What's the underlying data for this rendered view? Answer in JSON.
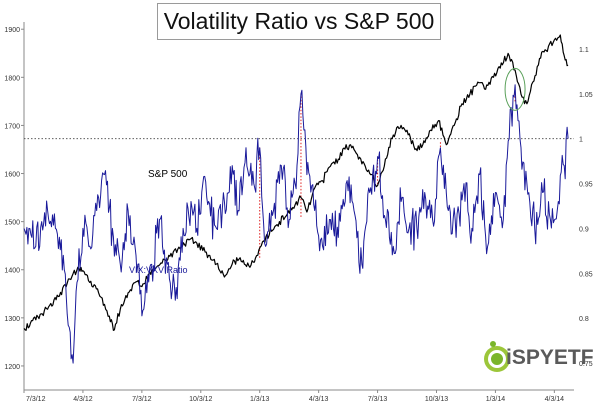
{
  "chart_data": {
    "type": "line",
    "title": "Volatility Ratio vs S&P 500",
    "x_tick_labels": [
      "7/3/12",
      "4/3/12",
      "7/3/12",
      "10/3/12",
      "1/3/13",
      "4/3/13",
      "7/3/13",
      "10/3/13",
      "1/3/14",
      "4/3/14"
    ],
    "x_tick_positions": [
      0,
      3,
      6,
      9,
      12,
      15,
      18,
      21,
      24,
      27
    ],
    "xlim": [
      0,
      28
    ],
    "left_axis": {
      "ticks": [
        1200,
        1300,
        1400,
        1500,
        1600,
        1700,
        1800,
        1900
      ],
      "ylim": [
        1150,
        1915
      ]
    },
    "right_axis": {
      "ticks": [
        0.75,
        0.8,
        0.85,
        0.9,
        0.95,
        1,
        1.05,
        1.1
      ],
      "tick_labels": [
        "0.75",
        "0.8",
        "0.85",
        "0.9",
        "0.95",
        "1",
        "1.05",
        "1.1"
      ],
      "ylim": [
        0.72,
        1.13
      ]
    },
    "series": [
      {
        "name": "S&P 500",
        "axis": "left",
        "color": "#000000",
        "anchors": [
          [
            0,
            1278
          ],
          [
            0.6,
            1296
          ],
          [
            1.2,
            1318
          ],
          [
            1.8,
            1345
          ],
          [
            2.2,
            1372
          ],
          [
            2.5,
            1392
          ],
          [
            2.8,
            1402
          ],
          [
            3.0,
            1398
          ],
          [
            3.4,
            1376
          ],
          [
            3.8,
            1352
          ],
          [
            4.1,
            1328
          ],
          [
            4.4,
            1292
          ],
          [
            4.6,
            1275
          ],
          [
            4.9,
            1318
          ],
          [
            5.3,
            1352
          ],
          [
            5.7,
            1375
          ],
          [
            6.0,
            1365
          ],
          [
            6.4,
            1395
          ],
          [
            6.8,
            1408
          ],
          [
            7.2,
            1420
          ],
          [
            7.6,
            1437
          ],
          [
            8.0,
            1448
          ],
          [
            8.4,
            1462
          ],
          [
            8.8,
            1455
          ],
          [
            9.1,
            1440
          ],
          [
            9.4,
            1430
          ],
          [
            9.8,
            1412
          ],
          [
            10.2,
            1385
          ],
          [
            10.6,
            1412
          ],
          [
            11.0,
            1425
          ],
          [
            11.5,
            1405
          ],
          [
            11.9,
            1430
          ],
          [
            12.2,
            1460
          ],
          [
            12.6,
            1480
          ],
          [
            13.0,
            1500
          ],
          [
            13.4,
            1515
          ],
          [
            13.8,
            1535
          ],
          [
            14.1,
            1550
          ],
          [
            14.4,
            1520
          ],
          [
            14.8,
            1570
          ],
          [
            15.2,
            1585
          ],
          [
            15.6,
            1615
          ],
          [
            16.0,
            1630
          ],
          [
            16.4,
            1660
          ],
          [
            16.8,
            1650
          ],
          [
            17.2,
            1620
          ],
          [
            17.6,
            1600
          ],
          [
            18.0,
            1575
          ],
          [
            18.4,
            1630
          ],
          [
            18.8,
            1680
          ],
          [
            19.2,
            1700
          ],
          [
            19.5,
            1690
          ],
          [
            19.9,
            1650
          ],
          [
            20.3,
            1660
          ],
          [
            20.7,
            1690
          ],
          [
            21.1,
            1710
          ],
          [
            21.5,
            1660
          ],
          [
            21.9,
            1700
          ],
          [
            22.3,
            1745
          ],
          [
            22.7,
            1765
          ],
          [
            23.1,
            1790
          ],
          [
            23.5,
            1775
          ],
          [
            23.9,
            1800
          ],
          [
            24.3,
            1830
          ],
          [
            24.7,
            1845
          ],
          [
            25.0,
            1815
          ],
          [
            25.3,
            1765
          ],
          [
            25.6,
            1745
          ],
          [
            25.9,
            1790
          ],
          [
            26.3,
            1840
          ],
          [
            26.7,
            1865
          ],
          [
            27.0,
            1878
          ],
          [
            27.3,
            1888
          ],
          [
            27.5,
            1845
          ],
          [
            27.7,
            1825
          ]
        ]
      },
      {
        "name": "VIX:VXV Ratio",
        "axis": "right",
        "color": "#1a1a9a",
        "anchors": [
          [
            0,
            0.9
          ],
          [
            0.4,
            0.89
          ],
          [
            0.8,
            0.88
          ],
          [
            1.2,
            0.92
          ],
          [
            1.6,
            0.9
          ],
          [
            2.0,
            0.87
          ],
          [
            2.3,
            0.79
          ],
          [
            2.5,
            0.75
          ],
          [
            2.7,
            0.84
          ],
          [
            3.0,
            0.9
          ],
          [
            3.3,
            0.88
          ],
          [
            3.7,
            0.92
          ],
          [
            4.1,
            0.96
          ],
          [
            4.5,
            0.9
          ],
          [
            4.9,
            0.86
          ],
          [
            5.3,
            0.92
          ],
          [
            5.7,
            0.87
          ],
          [
            6.1,
            0.81
          ],
          [
            6.5,
            0.86
          ],
          [
            6.9,
            0.91
          ],
          [
            7.3,
            0.86
          ],
          [
            7.7,
            0.82
          ],
          [
            8.1,
            0.9
          ],
          [
            8.5,
            0.93
          ],
          [
            8.8,
            0.9
          ],
          [
            9.1,
            0.95
          ],
          [
            9.4,
            0.93
          ],
          [
            9.8,
            0.9
          ],
          [
            10.2,
            0.93
          ],
          [
            10.6,
            0.97
          ],
          [
            10.9,
            0.92
          ],
          [
            11.3,
            0.99
          ],
          [
            11.7,
            0.95
          ],
          [
            12.0,
            0.99
          ],
          [
            12.3,
            0.88
          ],
          [
            12.7,
            0.92
          ],
          [
            13.1,
            0.97
          ],
          [
            13.5,
            0.91
          ],
          [
            13.8,
            0.95
          ],
          [
            14.1,
            1.05
          ],
          [
            14.4,
            0.96
          ],
          [
            14.8,
            0.92
          ],
          [
            15.2,
            0.88
          ],
          [
            15.6,
            0.91
          ],
          [
            16.0,
            0.89
          ],
          [
            16.4,
            0.95
          ],
          [
            16.8,
            0.92
          ],
          [
            17.2,
            0.86
          ],
          [
            17.6,
            0.94
          ],
          [
            18.0,
            0.98
          ],
          [
            18.4,
            0.91
          ],
          [
            18.8,
            0.88
          ],
          [
            19.2,
            0.93
          ],
          [
            19.6,
            0.9
          ],
          [
            20.0,
            0.9
          ],
          [
            20.4,
            0.94
          ],
          [
            20.8,
            0.91
          ],
          [
            21.2,
            0.99
          ],
          [
            21.6,
            0.92
          ],
          [
            22.0,
            0.89
          ],
          [
            22.4,
            0.95
          ],
          [
            22.8,
            0.9
          ],
          [
            23.2,
            0.96
          ],
          [
            23.6,
            0.88
          ],
          [
            24.0,
            0.94
          ],
          [
            24.4,
            0.91
          ],
          [
            24.7,
            1.0
          ],
          [
            25.0,
            1.06
          ],
          [
            25.3,
            0.99
          ],
          [
            25.6,
            0.95
          ],
          [
            26.0,
            0.9
          ],
          [
            26.4,
            0.94
          ],
          [
            26.8,
            0.91
          ],
          [
            27.2,
            0.93
          ],
          [
            27.5,
            0.97
          ],
          [
            27.7,
            1.0
          ]
        ]
      }
    ],
    "annotations": {
      "sp_label": "S&P 500",
      "ratio_label": "VIX:VXV Ratio",
      "reference_line": {
        "value": 1.0,
        "axis": "right",
        "style": "dotted"
      },
      "drop_lines": [
        {
          "x": 12.0,
          "top": 1425,
          "bottom": 0.99
        },
        {
          "x": 14.1,
          "top": 1510,
          "bottom": 1.05
        },
        {
          "x": 18.0,
          "top": 1578,
          "bottom": 0.98
        },
        {
          "x": 21.2,
          "top": 1665,
          "bottom": 0.99
        },
        {
          "x": 25.0,
          "top": 1750,
          "bottom": 1.06
        }
      ],
      "highlight_ellipse": {
        "x": 25.0,
        "y": 1.055
      }
    },
    "grid": false,
    "legend": "none"
  },
  "logo": {
    "text": "iSPYETF"
  },
  "colors": {
    "sp500": "#000000",
    "ratio": "#1a1a9a",
    "drop_lines": "#e02020",
    "ellipse": "#5aa05a",
    "axis": "#8a8a8a"
  }
}
